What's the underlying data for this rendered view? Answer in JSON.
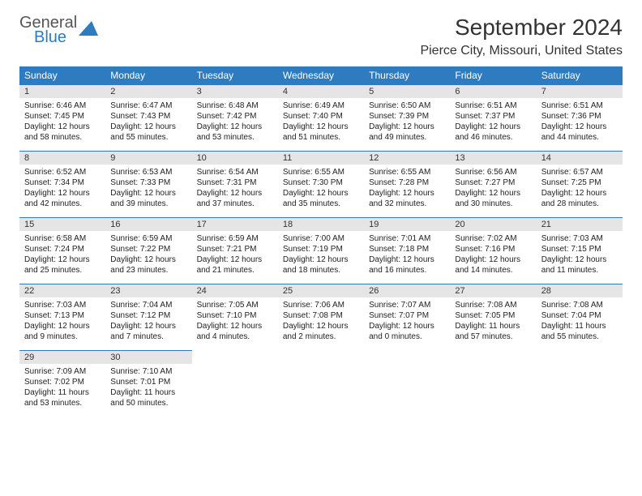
{
  "logo": {
    "general": "General",
    "blue": "Blue"
  },
  "title": "September 2024",
  "location": "Pierce City, Missouri, United States",
  "colors": {
    "header_bg": "#2f7bbf",
    "header_text": "#ffffff",
    "daynum_bg": "#e5e5e5",
    "row_border": "#2f7bbf",
    "text": "#222222"
  },
  "weekdays": [
    "Sunday",
    "Monday",
    "Tuesday",
    "Wednesday",
    "Thursday",
    "Friday",
    "Saturday"
  ],
  "weeks": [
    [
      {
        "n": "1",
        "sr": "6:46 AM",
        "ss": "7:45 PM",
        "dl": "12 hours and 58 minutes."
      },
      {
        "n": "2",
        "sr": "6:47 AM",
        "ss": "7:43 PM",
        "dl": "12 hours and 55 minutes."
      },
      {
        "n": "3",
        "sr": "6:48 AM",
        "ss": "7:42 PM",
        "dl": "12 hours and 53 minutes."
      },
      {
        "n": "4",
        "sr": "6:49 AM",
        "ss": "7:40 PM",
        "dl": "12 hours and 51 minutes."
      },
      {
        "n": "5",
        "sr": "6:50 AM",
        "ss": "7:39 PM",
        "dl": "12 hours and 49 minutes."
      },
      {
        "n": "6",
        "sr": "6:51 AM",
        "ss": "7:37 PM",
        "dl": "12 hours and 46 minutes."
      },
      {
        "n": "7",
        "sr": "6:51 AM",
        "ss": "7:36 PM",
        "dl": "12 hours and 44 minutes."
      }
    ],
    [
      {
        "n": "8",
        "sr": "6:52 AM",
        "ss": "7:34 PM",
        "dl": "12 hours and 42 minutes."
      },
      {
        "n": "9",
        "sr": "6:53 AM",
        "ss": "7:33 PM",
        "dl": "12 hours and 39 minutes."
      },
      {
        "n": "10",
        "sr": "6:54 AM",
        "ss": "7:31 PM",
        "dl": "12 hours and 37 minutes."
      },
      {
        "n": "11",
        "sr": "6:55 AM",
        "ss": "7:30 PM",
        "dl": "12 hours and 35 minutes."
      },
      {
        "n": "12",
        "sr": "6:55 AM",
        "ss": "7:28 PM",
        "dl": "12 hours and 32 minutes."
      },
      {
        "n": "13",
        "sr": "6:56 AM",
        "ss": "7:27 PM",
        "dl": "12 hours and 30 minutes."
      },
      {
        "n": "14",
        "sr": "6:57 AM",
        "ss": "7:25 PM",
        "dl": "12 hours and 28 minutes."
      }
    ],
    [
      {
        "n": "15",
        "sr": "6:58 AM",
        "ss": "7:24 PM",
        "dl": "12 hours and 25 minutes."
      },
      {
        "n": "16",
        "sr": "6:59 AM",
        "ss": "7:22 PM",
        "dl": "12 hours and 23 minutes."
      },
      {
        "n": "17",
        "sr": "6:59 AM",
        "ss": "7:21 PM",
        "dl": "12 hours and 21 minutes."
      },
      {
        "n": "18",
        "sr": "7:00 AM",
        "ss": "7:19 PM",
        "dl": "12 hours and 18 minutes."
      },
      {
        "n": "19",
        "sr": "7:01 AM",
        "ss": "7:18 PM",
        "dl": "12 hours and 16 minutes."
      },
      {
        "n": "20",
        "sr": "7:02 AM",
        "ss": "7:16 PM",
        "dl": "12 hours and 14 minutes."
      },
      {
        "n": "21",
        "sr": "7:03 AM",
        "ss": "7:15 PM",
        "dl": "12 hours and 11 minutes."
      }
    ],
    [
      {
        "n": "22",
        "sr": "7:03 AM",
        "ss": "7:13 PM",
        "dl": "12 hours and 9 minutes."
      },
      {
        "n": "23",
        "sr": "7:04 AM",
        "ss": "7:12 PM",
        "dl": "12 hours and 7 minutes."
      },
      {
        "n": "24",
        "sr": "7:05 AM",
        "ss": "7:10 PM",
        "dl": "12 hours and 4 minutes."
      },
      {
        "n": "25",
        "sr": "7:06 AM",
        "ss": "7:08 PM",
        "dl": "12 hours and 2 minutes."
      },
      {
        "n": "26",
        "sr": "7:07 AM",
        "ss": "7:07 PM",
        "dl": "12 hours and 0 minutes."
      },
      {
        "n": "27",
        "sr": "7:08 AM",
        "ss": "7:05 PM",
        "dl": "11 hours and 57 minutes."
      },
      {
        "n": "28",
        "sr": "7:08 AM",
        "ss": "7:04 PM",
        "dl": "11 hours and 55 minutes."
      }
    ],
    [
      {
        "n": "29",
        "sr": "7:09 AM",
        "ss": "7:02 PM",
        "dl": "11 hours and 53 minutes."
      },
      {
        "n": "30",
        "sr": "7:10 AM",
        "ss": "7:01 PM",
        "dl": "11 hours and 50 minutes."
      },
      null,
      null,
      null,
      null,
      null
    ]
  ],
  "labels": {
    "sunrise": "Sunrise:",
    "sunset": "Sunset:",
    "daylight": "Daylight:"
  }
}
